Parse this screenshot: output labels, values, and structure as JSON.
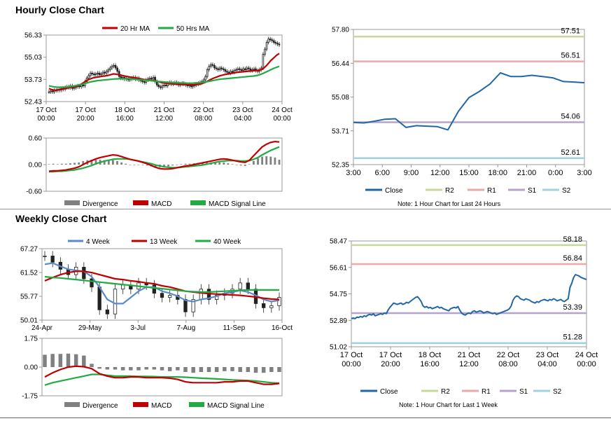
{
  "sections": {
    "hourly_title": "Hourly Close Chart",
    "weekly_title": "Weekly Close Chart"
  },
  "colors": {
    "close": "#2166a6",
    "r2": "#c8d89a",
    "r1": "#eca7a7",
    "s1": "#b5a3cb",
    "s2": "#9fd3dd",
    "ma_red": "#c00000",
    "ma_green": "#22aa44",
    "ma_blue": "#5b8bc7",
    "divergence": "#808080"
  },
  "chart_data": [
    {
      "id": "hourly_price",
      "type": "candlestick",
      "legend": [
        "20 Hr MA",
        "50 Hrs MA"
      ],
      "y_ticks": [
        "56.33",
        "55.03",
        "53.73",
        "52.43"
      ],
      "ylim": [
        52.43,
        56.33
      ],
      "x_labels": [
        [
          "17 Oct",
          "00:00"
        ],
        [
          "17 Oct",
          "20:00"
        ],
        [
          "18 Oct",
          "16:00"
        ],
        [
          "21 Oct",
          "12:00"
        ],
        [
          "22 Oct",
          "08:00"
        ],
        [
          "23 Oct",
          "04:00"
        ],
        [
          "24 Oct",
          "00:00"
        ]
      ],
      "close": [
        53.0,
        53.05,
        53.0,
        53.1,
        53.08,
        53.15,
        53.1,
        53.2,
        53.15,
        53.25,
        53.3,
        53.25,
        53.35,
        53.2,
        53.25,
        53.3,
        53.35,
        53.3,
        53.4,
        53.35,
        53.6,
        53.8,
        53.95,
        54.1,
        54.05,
        54.0,
        54.05,
        54.1,
        54.0,
        54.05,
        54.15,
        54.1,
        54.2,
        54.3,
        54.4,
        54.5,
        54.55,
        54.4,
        54.2,
        53.9,
        53.8,
        53.85,
        53.75,
        53.8,
        53.7,
        53.75,
        53.8,
        53.85,
        53.75,
        53.8,
        53.7,
        53.65,
        53.6,
        53.55,
        53.7,
        53.75,
        53.8,
        53.75,
        53.85,
        53.6,
        53.4,
        53.3,
        53.25,
        53.35,
        53.4,
        53.35,
        53.5,
        53.55,
        53.45,
        53.5,
        53.55,
        53.5,
        53.4,
        53.45,
        53.5,
        53.45,
        53.4,
        53.35,
        53.4,
        53.3,
        53.35,
        53.4,
        53.45,
        53.5,
        53.55,
        53.6,
        53.7,
        53.9,
        54.3,
        54.5,
        54.6,
        54.55,
        54.4,
        54.35,
        54.3,
        54.4,
        54.35,
        54.3,
        54.2,
        54.15,
        54.1,
        54.2,
        54.15,
        54.25,
        54.3,
        54.35,
        54.3,
        54.25,
        54.35,
        54.3,
        54.4,
        54.35,
        54.25,
        54.3,
        54.35,
        54.25,
        54.2,
        54.3,
        54.4,
        55.2,
        55.5,
        55.9,
        56.1,
        56.05,
        56.0,
        55.9,
        55.85,
        55.8,
        55.75
      ],
      "ma20": [
        53.2,
        53.15,
        53.12,
        53.1,
        53.1,
        53.12,
        53.14,
        53.16,
        53.18,
        53.2,
        53.22,
        53.24,
        53.26,
        53.28,
        53.3,
        53.32,
        53.35,
        53.4,
        53.46,
        53.52,
        53.6,
        53.66,
        53.72,
        53.76,
        53.8,
        53.83,
        53.85,
        53.87,
        53.88,
        53.9,
        53.92,
        53.93,
        53.95,
        53.97,
        54.0,
        54.03,
        54.05,
        54.04,
        54.02,
        54.0,
        53.98,
        53.95,
        53.93,
        53.91,
        53.89,
        53.87,
        53.85,
        53.84,
        53.82,
        53.8,
        53.78,
        53.76,
        53.74,
        53.72,
        53.7,
        53.69,
        53.68,
        53.67,
        53.66,
        53.64,
        53.62,
        53.59,
        53.56,
        53.54,
        53.52,
        53.5,
        53.49,
        53.48,
        53.47,
        53.46,
        53.46,
        53.45,
        53.45,
        53.44,
        53.44,
        53.43,
        53.43,
        53.42,
        53.42,
        53.42,
        53.42,
        53.42,
        53.43,
        53.44,
        53.46,
        53.48,
        53.52,
        53.56,
        53.62,
        53.68,
        53.73,
        53.78,
        53.82,
        53.86,
        53.9,
        53.94,
        53.97,
        54.0,
        54.02,
        54.04,
        54.06,
        54.08,
        54.1,
        54.12,
        54.13,
        54.15,
        54.16,
        54.17,
        54.18,
        54.19,
        54.2,
        54.21,
        54.22,
        54.23,
        54.24,
        54.25,
        54.25,
        54.28,
        54.3,
        54.35,
        54.45,
        54.55,
        54.67,
        54.8,
        54.9,
        55.0,
        55.1,
        55.18,
        55.25
      ],
      "ma50": [
        53.35,
        53.33,
        53.31,
        53.29,
        53.28,
        53.27,
        53.27,
        53.27,
        53.27,
        53.28,
        53.29,
        53.3,
        53.31,
        53.33,
        53.35,
        53.37,
        53.39,
        53.41,
        53.43,
        53.46,
        53.49,
        53.52,
        53.55,
        53.58,
        53.6,
        53.62,
        53.64,
        53.66,
        53.67,
        53.68,
        53.69,
        53.7,
        53.71,
        53.72,
        53.73,
        53.74,
        53.75,
        53.76,
        53.76,
        53.77,
        53.77,
        53.77,
        53.77,
        53.77,
        53.77,
        53.76,
        53.76,
        53.75,
        53.74,
        53.73,
        53.72,
        53.71,
        53.7,
        53.69,
        53.68,
        53.67,
        53.66,
        53.65,
        53.64,
        53.63,
        53.62,
        53.61,
        53.6,
        53.59,
        53.58,
        53.57,
        53.56,
        53.55,
        53.55,
        53.54,
        53.54,
        53.53,
        53.53,
        53.52,
        53.52,
        53.52,
        53.51,
        53.51,
        53.51,
        53.51,
        53.51,
        53.52,
        53.52,
        53.53,
        53.54,
        53.55,
        53.56,
        53.58,
        53.6,
        53.62,
        53.64,
        53.66,
        53.68,
        53.7,
        53.72,
        53.74,
        53.75,
        53.76,
        53.77,
        53.78,
        53.79,
        53.8,
        53.81,
        53.82,
        53.83,
        53.84,
        53.85,
        53.86,
        53.87,
        53.88,
        53.89,
        53.9,
        53.91,
        53.92,
        53.93,
        53.95,
        53.97,
        54.0,
        54.04,
        54.08,
        54.13,
        54.18,
        54.23,
        54.28,
        54.33,
        54.38,
        54.42,
        54.46,
        54.5
      ]
    },
    {
      "id": "hourly_macd",
      "type": "macd",
      "legend": [
        "Divergence",
        "MACD",
        "MACD Signal Line"
      ],
      "y_ticks": [
        "0.60",
        "0.00",
        "-0.60"
      ],
      "ylim": [
        -0.6,
        0.6
      ],
      "macd": [
        -0.15,
        -0.14,
        -0.14,
        -0.13,
        -0.12,
        -0.1,
        -0.08,
        -0.05,
        0.0,
        0.05,
        0.09,
        0.13,
        0.16,
        0.18,
        0.2,
        0.22,
        0.21,
        0.18,
        0.15,
        0.12,
        0.1,
        0.08,
        0.05,
        0.02,
        -0.02,
        -0.06,
        -0.09,
        -0.1,
        -0.1,
        -0.09,
        -0.07,
        -0.05,
        -0.03,
        -0.02,
        0.0,
        0.02,
        0.04,
        0.06,
        0.08,
        0.1,
        0.12,
        0.13,
        0.12,
        0.1,
        0.08,
        0.06,
        0.05,
        0.1,
        0.2,
        0.3,
        0.4,
        0.46,
        0.5,
        0.52,
        0.51
      ],
      "signal": [
        -0.16,
        -0.16,
        -0.15,
        -0.15,
        -0.14,
        -0.13,
        -0.12,
        -0.1,
        -0.08,
        -0.05,
        -0.02,
        0.02,
        0.05,
        0.08,
        0.1,
        0.12,
        0.13,
        0.13,
        0.13,
        0.12,
        0.1,
        0.08,
        0.06,
        0.04,
        0.02,
        -0.01,
        -0.03,
        -0.05,
        -0.06,
        -0.07,
        -0.07,
        -0.06,
        -0.05,
        -0.04,
        -0.03,
        -0.02,
        -0.01,
        0.01,
        0.03,
        0.05,
        0.07,
        0.08,
        0.09,
        0.09,
        0.09,
        0.08,
        0.08,
        0.09,
        0.12,
        0.16,
        0.22,
        0.27,
        0.32,
        0.36,
        0.4
      ],
      "divergence": [
        0.01,
        0.02,
        0.01,
        0.02,
        0.02,
        0.03,
        0.04,
        0.05,
        0.08,
        0.1,
        0.11,
        0.11,
        0.11,
        0.1,
        0.1,
        0.1,
        0.08,
        0.05,
        0.02,
        0.0,
        0.0,
        0.0,
        -0.01,
        -0.02,
        -0.04,
        -0.05,
        -0.06,
        -0.05,
        -0.04,
        -0.02,
        0.0,
        0.01,
        0.02,
        0.02,
        0.03,
        0.04,
        0.05,
        0.05,
        0.05,
        0.05,
        0.05,
        0.05,
        0.03,
        0.01,
        -0.01,
        -0.02,
        -0.03,
        0.01,
        0.08,
        0.14,
        0.18,
        0.19,
        0.18,
        0.16,
        0.11
      ]
    },
    {
      "id": "hourly_pivot",
      "type": "line",
      "legend": [
        "Close",
        "R2",
        "R1",
        "S1",
        "S2"
      ],
      "note": "Note: 1 Hour Chart for Last 24 Hours",
      "y_ticks": [
        "57.80",
        "56.44",
        "55.08",
        "53.71",
        "52.35"
      ],
      "ylim": [
        52.35,
        57.8
      ],
      "x_labels": [
        "3:00",
        "6:00",
        "9:00",
        "12:00",
        "15:00",
        "18:00",
        "21:00",
        "0:00",
        "3:00"
      ],
      "levels": {
        "R2": 57.51,
        "R1": 56.51,
        "S1": 54.06,
        "S2": 52.61
      },
      "level_labels": {
        "R2": "57.51",
        "R1": "56.51",
        "S1": "54.06",
        "S2": "52.61"
      },
      "close": [
        54.05,
        54.03,
        54.1,
        54.18,
        54.2,
        53.85,
        53.92,
        53.9,
        53.88,
        53.75,
        54.5,
        55.05,
        55.3,
        55.6,
        56.05,
        55.9,
        55.9,
        55.95,
        55.9,
        55.85,
        55.7,
        55.68,
        55.65
      ]
    },
    {
      "id": "weekly_price",
      "type": "candlestick",
      "legend": [
        "4 Week",
        "13 Week",
        "40 Week"
      ],
      "y_ticks": [
        "67.27",
        "61.52",
        "55.77",
        "50.01"
      ],
      "ylim": [
        50.01,
        67.27
      ],
      "x_labels": [
        "24-Apr",
        "29-May",
        "3-Jul",
        "7-Aug",
        "11-Sep",
        "16-Oct"
      ],
      "close": [
        65.5,
        64.0,
        62.3,
        61.0,
        62.8,
        60.0,
        58.0,
        52.5,
        51.5,
        57.5,
        58.5,
        57.5,
        59.0,
        58.5,
        56.5,
        55.5,
        56.0,
        55.0,
        52.0,
        55.0,
        57.5,
        55.0,
        56.0,
        56.5,
        57.5,
        59.0,
        57.5,
        54.0,
        53.0,
        53.5,
        55.5
      ],
      "ma4": [
        63.5,
        63.8,
        63.0,
        62.3,
        62.0,
        61.8,
        60.5,
        58.0,
        55.0,
        54.0,
        54.0,
        55.5,
        57.0,
        58.0,
        58.0,
        57.0,
        56.5,
        55.8,
        54.8,
        54.5,
        55.0,
        55.3,
        55.8,
        56.5,
        56.8,
        57.2,
        56.8,
        56.0,
        55.0,
        54.5,
        54.8
      ],
      "ma13": [
        59.5,
        60.3,
        61.0,
        61.5,
        61.8,
        61.8,
        61.5,
        61.0,
        60.5,
        60.0,
        59.8,
        59.5,
        59.3,
        59.0,
        58.8,
        58.3,
        58.0,
        57.5,
        57.0,
        56.8,
        56.6,
        56.4,
        56.3,
        56.2,
        56.1,
        56.0,
        55.8,
        55.6,
        55.3,
        55.1,
        55.0
      ],
      "ma40": [
        60.5,
        60.3,
        60.2,
        60.0,
        59.8,
        59.6,
        59.4,
        59.2,
        59.0,
        58.8,
        58.6,
        58.4,
        58.2,
        58.0,
        57.8,
        57.6,
        57.4,
        57.2,
        57.0,
        56.9,
        56.8,
        56.8,
        56.9,
        57.0,
        57.1,
        57.2,
        57.3,
        57.3,
        57.3,
        57.3,
        57.3
      ]
    },
    {
      "id": "weekly_macd",
      "type": "macd",
      "legend": [
        "Divergence",
        "MACD",
        "MACD Signal Line"
      ],
      "y_ticks": [
        "1.75",
        "0.00",
        "-1.75"
      ],
      "ylim": [
        -1.75,
        1.75
      ],
      "macd": [
        -0.6,
        -0.35,
        -0.15,
        0.0,
        0.05,
        0.02,
        -0.1,
        -0.4,
        -0.55,
        -0.65,
        -0.65,
        -0.6,
        -0.6,
        -0.65,
        -0.65,
        -0.65,
        -0.68,
        -0.75,
        -0.9,
        -0.95,
        -0.95,
        -0.95,
        -0.95,
        -0.9,
        -0.9,
        -0.85,
        -0.85,
        -0.95,
        -1.05,
        -1.05,
        -1.0
      ],
      "signal": [
        -1.1,
        -0.95,
        -0.85,
        -0.75,
        -0.65,
        -0.55,
        -0.45,
        -0.45,
        -0.5,
        -0.55,
        -0.55,
        -0.55,
        -0.57,
        -0.57,
        -0.58,
        -0.6,
        -0.6,
        -0.6,
        -0.62,
        -0.65,
        -0.68,
        -0.7,
        -0.72,
        -0.75,
        -0.78,
        -0.8,
        -0.82,
        -0.85,
        -0.9,
        -0.95,
        -0.98
      ],
      "divergence": [
        0.75,
        0.8,
        0.8,
        0.82,
        0.78,
        0.7,
        0.2,
        -0.1,
        -0.15,
        -0.15,
        -0.2,
        -0.2,
        -0.2,
        -0.15,
        -0.15,
        -0.2,
        -0.25,
        -0.2,
        -0.3,
        -0.35,
        -0.3,
        -0.3,
        -0.3,
        -0.25,
        -0.25,
        -0.3,
        -0.3,
        -0.35,
        -0.35,
        -0.3,
        -0.3
      ]
    },
    {
      "id": "weekly_pivot",
      "type": "line",
      "legend": [
        "Close",
        "R2",
        "R1",
        "S1",
        "S2"
      ],
      "note": "Note: 1 Hour Chart for Last 1 Week",
      "y_ticks": [
        "58.47",
        "56.61",
        "54.75",
        "52.89",
        "51.02"
      ],
      "ylim": [
        51.02,
        58.47
      ],
      "x_labels": [
        [
          "17 Oct",
          "00:00"
        ],
        [
          "17 Oct",
          "20:00"
        ],
        [
          "18 Oct",
          "16:00"
        ],
        [
          "21 Oct",
          "12:00"
        ],
        [
          "22 Oct",
          "08:00"
        ],
        [
          "23 Oct",
          "04:00"
        ],
        [
          "24 Oct",
          "00:00"
        ]
      ],
      "levels": {
        "R2": 58.18,
        "R1": 56.84,
        "S1": 53.39,
        "S2": 51.28
      },
      "level_labels": {
        "R2": "58.18",
        "R1": "56.84",
        "S1": "53.39",
        "S2": "51.28"
      },
      "close": [
        53.0,
        53.05,
        53.0,
        53.1,
        53.08,
        53.15,
        53.1,
        53.2,
        53.15,
        53.25,
        53.3,
        53.25,
        53.35,
        53.2,
        53.25,
        53.3,
        53.35,
        53.3,
        53.4,
        53.35,
        53.6,
        53.8,
        53.95,
        54.1,
        54.05,
        54.0,
        54.05,
        54.1,
        54.0,
        54.05,
        54.15,
        54.1,
        54.2,
        54.3,
        54.4,
        54.5,
        54.55,
        54.4,
        54.2,
        53.9,
        53.8,
        53.85,
        53.75,
        53.8,
        53.7,
        53.75,
        53.8,
        53.85,
        53.75,
        53.8,
        53.7,
        53.65,
        53.6,
        53.55,
        53.7,
        53.75,
        53.8,
        53.75,
        53.85,
        53.6,
        53.4,
        53.3,
        53.25,
        53.35,
        53.4,
        53.35,
        53.5,
        53.55,
        53.45,
        53.5,
        53.55,
        53.5,
        53.4,
        53.45,
        53.5,
        53.45,
        53.4,
        53.35,
        53.4,
        53.3,
        53.35,
        53.4,
        53.45,
        53.5,
        53.55,
        53.6,
        53.7,
        53.9,
        54.3,
        54.5,
        54.6,
        54.55,
        54.4,
        54.35,
        54.3,
        54.4,
        54.35,
        54.3,
        54.2,
        54.15,
        54.1,
        54.2,
        54.15,
        54.25,
        54.3,
        54.35,
        54.3,
        54.25,
        54.35,
        54.3,
        54.4,
        54.35,
        54.25,
        54.3,
        54.35,
        54.25,
        54.2,
        54.3,
        54.4,
        55.2,
        55.5,
        55.9,
        56.1,
        56.05,
        56.0,
        55.9,
        55.85,
        55.8,
        55.75
      ]
    }
  ]
}
